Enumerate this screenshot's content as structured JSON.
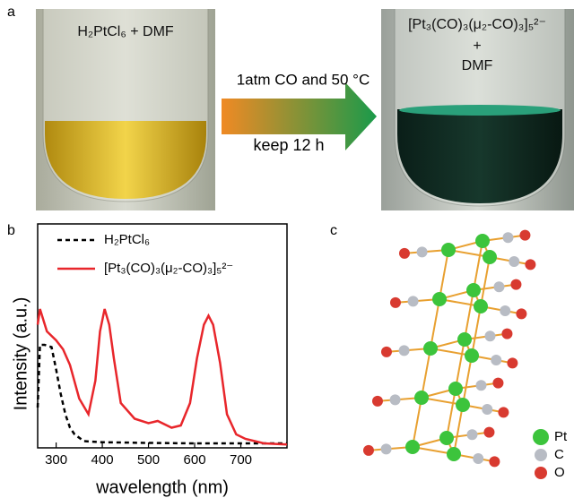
{
  "panel_labels": [
    "a",
    "b",
    "c"
  ],
  "photo_a": {
    "label": "H₂PtCl₆ + DMF"
  },
  "photo_b": {
    "label": "[Pt₃(CO)₃(μ₂-CO)₃]₅²⁻",
    "plus": "+",
    "solvent": "DMF"
  },
  "arrow": {
    "condition": "1atm CO and 50 °C",
    "time": "keep 12 h"
  },
  "chart_data": {
    "type": "line",
    "x_label": "wavelength (nm)",
    "y_label": "Intensity (a.u.)",
    "xlim": [
      260,
      800
    ],
    "ylim": [
      0,
      1
    ],
    "xticks": [
      300,
      400,
      500,
      600,
      700
    ],
    "legend": "upper left",
    "series": [
      {
        "name": "H₂PtCl₆",
        "color": "#000000",
        "linestyle": "dashed",
        "x": [
          260,
          265,
          275,
          290,
          300,
          310,
          320,
          330,
          340,
          360,
          400,
          500,
          600,
          700,
          800
        ],
        "values": [
          0.18,
          0.46,
          0.46,
          0.45,
          0.35,
          0.24,
          0.15,
          0.09,
          0.06,
          0.03,
          0.025,
          0.022,
          0.02,
          0.02,
          0.02
        ]
      },
      {
        "name": "[Pt₃(CO)₃(μ₂-CO)₃]₅²⁻",
        "color": "#e8262b",
        "linestyle": "solid",
        "x": [
          260,
          265,
          280,
          300,
          315,
          330,
          350,
          370,
          385,
          395,
          405,
          415,
          425,
          440,
          470,
          500,
          520,
          550,
          570,
          590,
          605,
          620,
          630,
          640,
          655,
          670,
          690,
          710,
          750,
          800
        ],
        "values": [
          0.55,
          0.62,
          0.52,
          0.48,
          0.44,
          0.37,
          0.22,
          0.15,
          0.3,
          0.52,
          0.62,
          0.55,
          0.4,
          0.2,
          0.13,
          0.11,
          0.12,
          0.09,
          0.1,
          0.2,
          0.4,
          0.55,
          0.59,
          0.55,
          0.38,
          0.15,
          0.06,
          0.04,
          0.02,
          0.015
        ]
      }
    ]
  },
  "structure_legend": [
    {
      "label": "Pt",
      "color": "#3cc43c"
    },
    {
      "label": "C",
      "color": "#b8bcc4"
    },
    {
      "label": "O",
      "color": "#d83a30"
    }
  ]
}
